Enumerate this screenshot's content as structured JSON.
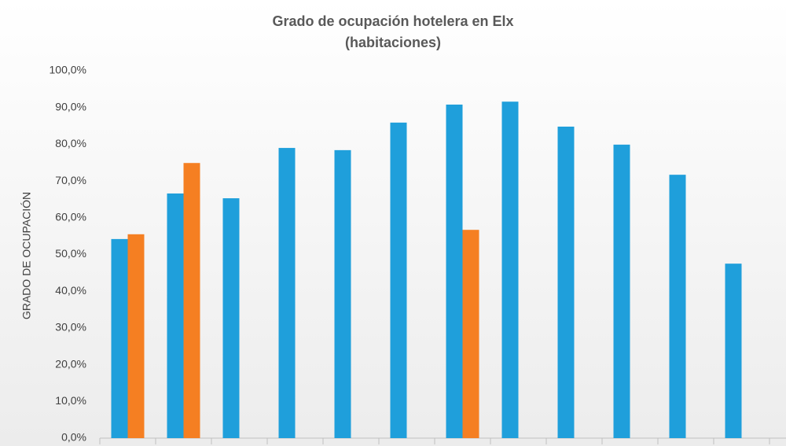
{
  "chart_data": {
    "type": "bar",
    "title": "Grado de ocupación hotelera en Elx",
    "subtitle": "(habitaciones)",
    "y_label": "GRADO DE OCUPACIÓN",
    "categories": [
      null,
      null,
      null,
      null,
      null,
      null,
      null,
      null,
      null,
      null,
      null,
      null
    ],
    "series": [
      {
        "color": "#1f9fdb",
        "values": [
          54.2,
          66.6,
          65.3,
          79.0,
          78.4,
          85.9,
          90.8,
          91.6,
          84.8,
          79.9,
          71.7,
          47.5
        ]
      },
      {
        "color": "#f57f22",
        "values": [
          55.5,
          74.9,
          null,
          null,
          null,
          null,
          56.7,
          null,
          null,
          null,
          null,
          null
        ]
      }
    ],
    "ylim": [
      0,
      100
    ],
    "yticks": [
      {
        "value": 0,
        "label": "0,0%"
      },
      {
        "value": 10,
        "label": "10,0%"
      },
      {
        "value": 20,
        "label": "20,0%"
      },
      {
        "value": 30,
        "label": "30,0%"
      },
      {
        "value": 40,
        "label": "40,0%"
      },
      {
        "value": 50,
        "label": "50,0%"
      },
      {
        "value": 60,
        "label": "60,0%"
      },
      {
        "value": 70,
        "label": "70,0%"
      },
      {
        "value": 80,
        "label": "80,0%"
      },
      {
        "value": 90,
        "label": "90,0%"
      },
      {
        "value": 100,
        "label": "100,0%"
      }
    ],
    "grid": false
  }
}
